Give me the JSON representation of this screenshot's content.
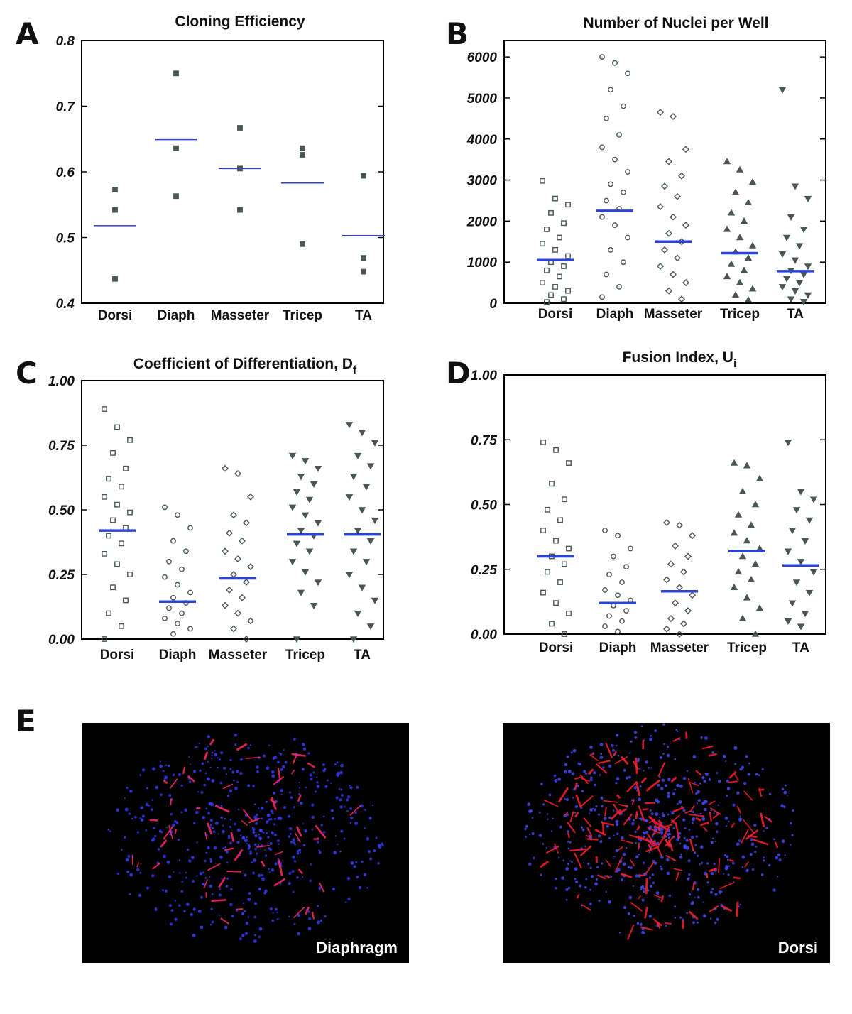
{
  "chart_data": [
    {
      "type": "strip",
      "panel": "A",
      "title": "Cloning Efficiency",
      "color": "#4a5654",
      "mean_color": "#2b44d6",
      "categories": [
        "Dorsi",
        "Diaph",
        "Masseter",
        "Tricep",
        "TA"
      ],
      "markers": [
        "square-filled",
        "square-filled",
        "square-filled",
        "square-filled",
        "square-filled"
      ],
      "values": [
        [
          0.573,
          0.542,
          0.437
        ],
        [
          0.75,
          0.636,
          0.563
        ],
        [
          0.667,
          0.605,
          0.542
        ],
        [
          0.636,
          0.626,
          0.49
        ],
        [
          0.594,
          0.469,
          0.448
        ]
      ],
      "means": [
        0.518,
        0.649,
        0.605,
        0.583,
        0.503
      ],
      "ylim": [
        0.4,
        0.8
      ],
      "yticks": [
        0.4,
        0.5,
        0.6,
        0.7,
        0.8
      ]
    },
    {
      "type": "strip",
      "panel": "B",
      "title": "Number of Nuclei per Well",
      "color": "#4a5654",
      "mean_color": "#2b44d6",
      "categories": [
        "Dorsi",
        "Diaph",
        "Masseter",
        "Tricep",
        "TA"
      ],
      "markers": [
        "square-open",
        "circle-open",
        "diamond-open",
        "triup-filled",
        "tridown-filled"
      ],
      "values": [
        [
          2980,
          2550,
          2400,
          2200,
          1950,
          1800,
          1600,
          1450,
          1300,
          1150,
          1000,
          900,
          800,
          650,
          500,
          400,
          300,
          200,
          100,
          30
        ],
        [
          6000,
          5850,
          5600,
          5200,
          4800,
          4500,
          4100,
          3800,
          3500,
          3200,
          2900,
          2700,
          2500,
          2300,
          2100,
          1900,
          1600,
          1300,
          1000,
          700,
          400,
          150
        ],
        [
          4650,
          4550,
          3750,
          3450,
          3100,
          2850,
          2600,
          2350,
          2100,
          1900,
          1700,
          1500,
          1300,
          1100,
          900,
          700,
          500,
          300,
          100
        ],
        [
          3450,
          3250,
          2950,
          2700,
          2450,
          2200,
          2000,
          1800,
          1600,
          1400,
          1250,
          1100,
          950,
          800,
          650,
          500,
          350,
          200,
          80
        ],
        [
          5200,
          2850,
          2550,
          2100,
          1800,
          1600,
          1400,
          1200,
          1050,
          900,
          800,
          700,
          600,
          500,
          400,
          300,
          200,
          100,
          40
        ]
      ],
      "means": [
        1050,
        2250,
        1500,
        1220,
        780
      ],
      "ylim": [
        0,
        6400
      ],
      "yticks": [
        0,
        1000,
        2000,
        3000,
        4000,
        5000,
        6000
      ]
    },
    {
      "type": "strip",
      "panel": "C",
      "title": "Coefficient of Differentiation, D",
      "title_subscript": "f",
      "color": "#4a5654",
      "mean_color": "#2b44d6",
      "categories": [
        "Dorsi",
        "Diaph",
        "Masseter",
        "Tricep",
        "TA"
      ],
      "markers": [
        "square-open",
        "circle-open",
        "diamond-open",
        "tridown-filled",
        "tridown-filled"
      ],
      "values": [
        [
          0.89,
          0.82,
          0.77,
          0.72,
          0.66,
          0.62,
          0.59,
          0.55,
          0.52,
          0.49,
          0.46,
          0.43,
          0.4,
          0.37,
          0.33,
          0.29,
          0.25,
          0.2,
          0.15,
          0.1,
          0.05,
          0.0
        ],
        [
          0.51,
          0.48,
          0.43,
          0.38,
          0.34,
          0.3,
          0.27,
          0.24,
          0.21,
          0.18,
          0.16,
          0.14,
          0.12,
          0.1,
          0.08,
          0.06,
          0.04,
          0.02
        ],
        [
          0.66,
          0.64,
          0.55,
          0.48,
          0.45,
          0.41,
          0.38,
          0.34,
          0.31,
          0.28,
          0.25,
          0.22,
          0.19,
          0.16,
          0.13,
          0.1,
          0.07,
          0.04,
          0.0
        ],
        [
          0.71,
          0.69,
          0.66,
          0.63,
          0.6,
          0.57,
          0.54,
          0.51,
          0.48,
          0.45,
          0.42,
          0.4,
          0.37,
          0.34,
          0.3,
          0.26,
          0.22,
          0.18,
          0.13,
          0.0
        ],
        [
          0.83,
          0.8,
          0.76,
          0.71,
          0.67,
          0.63,
          0.59,
          0.55,
          0.5,
          0.46,
          0.42,
          0.38,
          0.34,
          0.3,
          0.25,
          0.2,
          0.15,
          0.1,
          0.05,
          0.0
        ]
      ],
      "means": [
        0.42,
        0.145,
        0.235,
        0.405,
        0.405
      ],
      "ylim": [
        0,
        1
      ],
      "yticks": [
        {
          "value": 0,
          "label": "0.00"
        },
        {
          "value": 0.25,
          "label": "0.25"
        },
        {
          "value": 0.5,
          "label": "0.50"
        },
        {
          "value": 0.75,
          "label": "0.75"
        },
        {
          "value": 1,
          "label": "1.00"
        }
      ]
    },
    {
      "type": "strip",
      "panel": "D",
      "title": "Fusion Index, U",
      "title_subscript": "i",
      "color": "#4a5654",
      "mean_color": "#2b44d6",
      "categories": [
        "Dorsi",
        "Diaph",
        "Masseter",
        "Tricep",
        "TA"
      ],
      "markers": [
        "square-open",
        "circle-open",
        "diamond-open",
        "triup-filled",
        "tridown-filled"
      ],
      "values": [
        [
          0.74,
          0.71,
          0.66,
          0.58,
          0.52,
          0.48,
          0.44,
          0.4,
          0.36,
          0.33,
          0.3,
          0.27,
          0.24,
          0.2,
          0.16,
          0.12,
          0.08,
          0.04,
          0.0
        ],
        [
          0.4,
          0.38,
          0.33,
          0.3,
          0.26,
          0.23,
          0.2,
          0.17,
          0.15,
          0.13,
          0.11,
          0.09,
          0.07,
          0.05,
          0.03,
          0.01
        ],
        [
          0.43,
          0.42,
          0.38,
          0.34,
          0.3,
          0.27,
          0.24,
          0.21,
          0.18,
          0.15,
          0.12,
          0.09,
          0.06,
          0.04,
          0.02,
          0.0
        ],
        [
          0.66,
          0.65,
          0.6,
          0.55,
          0.5,
          0.46,
          0.42,
          0.39,
          0.36,
          0.33,
          0.3,
          0.27,
          0.24,
          0.21,
          0.18,
          0.14,
          0.1,
          0.06,
          0.0
        ],
        [
          0.74,
          0.55,
          0.52,
          0.48,
          0.44,
          0.4,
          0.36,
          0.32,
          0.28,
          0.24,
          0.2,
          0.16,
          0.12,
          0.08,
          0.05,
          0.03
        ]
      ],
      "means": [
        0.3,
        0.12,
        0.165,
        0.32,
        0.265
      ],
      "ylim": [
        0,
        1
      ],
      "yticks": [
        {
          "value": 0,
          "label": "0.00"
        },
        {
          "value": 0.25,
          "label": "0.25"
        },
        {
          "value": 0.5,
          "label": "0.50"
        },
        {
          "value": 0.75,
          "label": "0.75"
        },
        {
          "value": 1,
          "label": "1.00"
        }
      ]
    }
  ],
  "panel_e": {
    "panel": "E",
    "images": [
      {
        "caption": "Diaphragm"
      },
      {
        "caption": "Dorsi"
      }
    ]
  }
}
